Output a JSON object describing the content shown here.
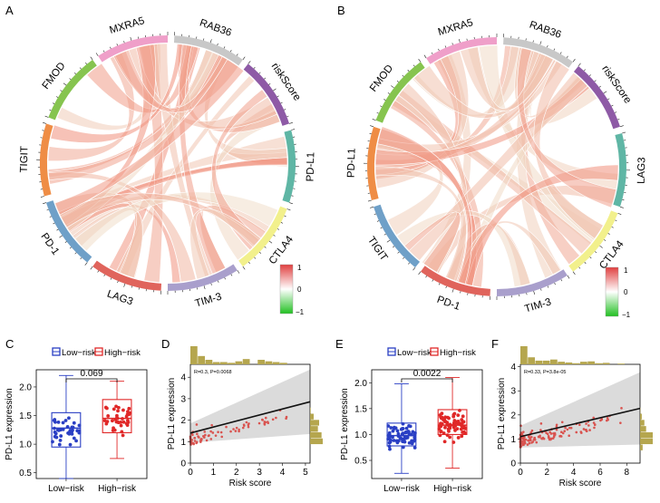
{
  "panel_labels": [
    "A",
    "B",
    "C",
    "D",
    "E",
    "F"
  ],
  "chart_data": [
    {
      "panel": "A",
      "type": "chord",
      "sectors": [
        "RAB36",
        "riskScore",
        "PD-L1",
        "CTLA4",
        "TIM-3",
        "LAG3",
        "PD-1",
        "TIGIT",
        "FMOD",
        "MXRA5"
      ],
      "sector_colors": [
        "#c8c8c8",
        "#8e5aa6",
        "#5fb6a5",
        "#f2f08c",
        "#a99fcc",
        "#e0645c",
        "#6fa0c8",
        "#ef8d45",
        "#86c44f",
        "#ef9fc9"
      ],
      "legend": {
        "ticks": [
          "1",
          "0",
          "−1"
        ],
        "low_color": "#22c022",
        "mid_color": "#ffffff",
        "high_color": "#e04040"
      }
    },
    {
      "panel": "B",
      "type": "chord",
      "sectors": [
        "RAB36",
        "riskScore",
        "LAG3",
        "CTLA4",
        "TIM-3",
        "PD-1",
        "TIGIT",
        "PD-L1",
        "FMOD",
        "MXRA5"
      ],
      "sector_colors": [
        "#c8c8c8",
        "#8e5aa6",
        "#5fb6a5",
        "#f2f08c",
        "#a99fcc",
        "#e0645c",
        "#6fa0c8",
        "#ef8d45",
        "#86c44f",
        "#ef9fc9"
      ],
      "legend": {
        "ticks": [
          "1",
          "0",
          "−1"
        ],
        "low_color": "#22c022",
        "mid_color": "#ffffff",
        "high_color": "#e04040"
      }
    },
    {
      "panel": "C",
      "type": "box",
      "legend": [
        "Low−risk",
        "High−risk"
      ],
      "categories": [
        "Low−risk",
        "High−risk"
      ],
      "colors": [
        "#2a3fc4",
        "#e02828"
      ],
      "ylabel": "PD-L1 expression",
      "ylim": [
        0.4,
        2.3
      ],
      "yticks": [
        "0.5",
        "1.0",
        "1.5",
        "2.0"
      ],
      "pvalue": "0.069",
      "stats": [
        {
          "min": 0.4,
          "q1": 0.95,
          "median": 1.28,
          "q3": 1.55,
          "max": 2.2
        },
        {
          "min": 0.75,
          "q1": 1.2,
          "median": 1.45,
          "q3": 1.78,
          "max": 2.1
        }
      ]
    },
    {
      "panel": "D",
      "type": "scatter",
      "annotation": "R=0.3, P=0.0068",
      "xlabel": "Risk score",
      "ylabel": "PD-L1 expression",
      "xlim": [
        0,
        5.2
      ],
      "ylim": [
        0,
        4.6
      ],
      "xticks": [
        "0",
        "1",
        "2",
        "3",
        "4",
        "5"
      ],
      "yticks": [
        "0",
        "1",
        "2",
        "3",
        "4"
      ],
      "fit": {
        "intercept": 1.4,
        "slope": 0.28
      }
    },
    {
      "panel": "E",
      "type": "box",
      "legend": [
        "Low−risk",
        "High−risk"
      ],
      "categories": [
        "Low−risk",
        "High−risk"
      ],
      "colors": [
        "#2a3fc4",
        "#e02828"
      ],
      "ylabel": "PD-L1 expression",
      "ylim": [
        0.15,
        2.25
      ],
      "yticks": [
        "0.5",
        "1.0",
        "1.5",
        "2.0"
      ],
      "pvalue": "0.0022",
      "stats": [
        {
          "min": 0.25,
          "q1": 0.78,
          "median": 0.98,
          "q3": 1.22,
          "max": 1.98
        },
        {
          "min": 0.35,
          "q1": 1.0,
          "median": 1.18,
          "q3": 1.48,
          "max": 2.1
        }
      ]
    },
    {
      "panel": "F",
      "type": "scatter",
      "annotation": "R=0.33, P=3.8e-05",
      "xlabel": "Risk score",
      "ylabel": "PD-L1 expression",
      "xlim": [
        0,
        9
      ],
      "ylim": [
        0,
        4.1
      ],
      "xticks": [
        "0",
        "2",
        "4",
        "6",
        "8"
      ],
      "yticks": [
        "0",
        "1",
        "2",
        "3",
        "4"
      ],
      "fit": {
        "intercept": 1.1,
        "slope": 0.13
      }
    }
  ]
}
